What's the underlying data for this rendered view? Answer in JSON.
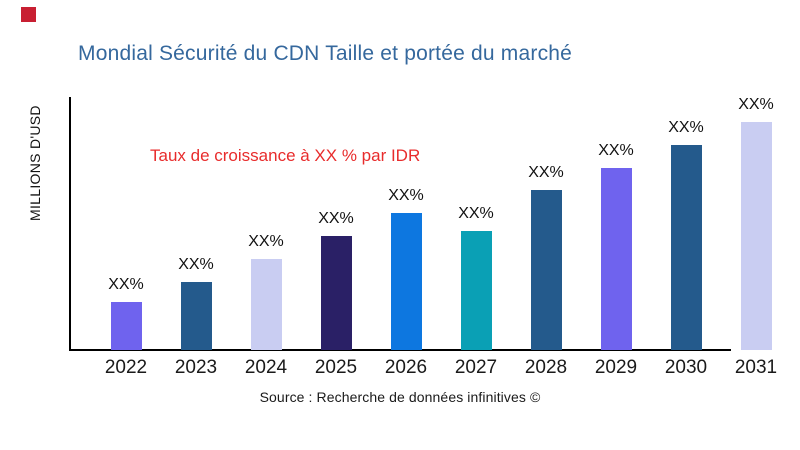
{
  "page": {
    "background": "#ffffff"
  },
  "logo": {
    "name": "red-square-logo",
    "color": "#c81f32"
  },
  "header": {
    "title": "Mondial Sécurité du CDN Taille et portée du marché",
    "title_color": "#35689d"
  },
  "annotation": {
    "text": "Taux de croissance à XX % par IDR",
    "color": "#e82c2c"
  },
  "source": {
    "text": "Source : Recherche de données infinitives ©"
  },
  "chart_data": {
    "type": "bar",
    "title": "Mondial Sécurité du CDN Taille et portée du marché",
    "xlabel": "",
    "ylabel": "MILLIONS D'USD",
    "annotation": "Taux de croissance à XX % par IDR",
    "categories": [
      "2022",
      "2023",
      "2024",
      "2025",
      "2026",
      "2027",
      "2028",
      "2029",
      "2030",
      "2031"
    ],
    "values": [
      21,
      30,
      40,
      50,
      60,
      52,
      70,
      80,
      90,
      100
    ],
    "values_note": "relative heights estimated from pixels; actual values masked as XX% placeholders",
    "bar_labels": [
      "XX%",
      "XX%",
      "XX%",
      "XX%",
      "XX%",
      "XX%",
      "XX%",
      "XX%",
      "XX%",
      "XX%"
    ],
    "bar_colors": [
      "#6f63ee",
      "#245a8c",
      "#c9cdf2",
      "#2a2066",
      "#0d77e0",
      "#0aa0b5",
      "#245a8c",
      "#6f63ee",
      "#245a8c",
      "#c9cdf2"
    ],
    "ylim": [
      0,
      105
    ],
    "grid": false,
    "legend": false,
    "axis_color": "#000000"
  }
}
